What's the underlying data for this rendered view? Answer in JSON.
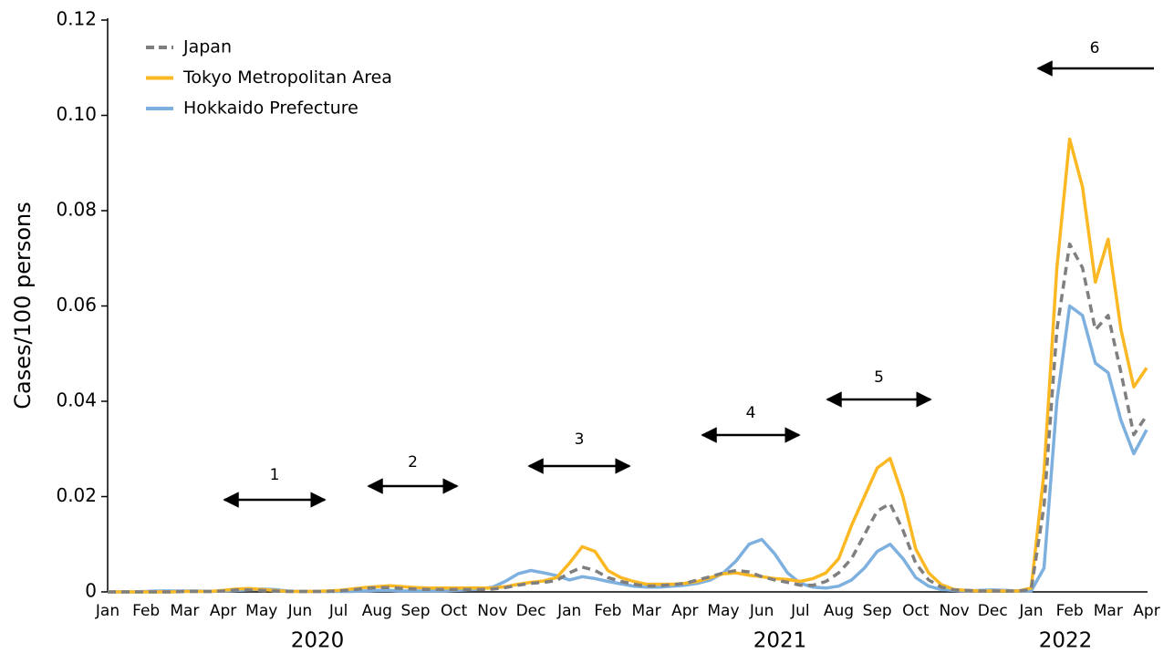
{
  "chart_data": {
    "type": "line",
    "y_label": "Cases/100 persons",
    "categories": [
      "Jan",
      null,
      null,
      "Feb",
      null,
      null,
      "Mar",
      null,
      null,
      "Apr",
      null,
      null,
      "May",
      null,
      null,
      "Jun",
      null,
      null,
      "Jul",
      null,
      null,
      "Aug",
      null,
      null,
      "Sep",
      null,
      null,
      "Oct",
      null,
      null,
      "Nov",
      null,
      null,
      "Dec",
      null,
      null,
      "Jan",
      null,
      null,
      "Feb",
      null,
      null,
      "Mar",
      null,
      null,
      "Apr",
      null,
      null,
      "May",
      null,
      null,
      "Jun",
      null,
      null,
      "Jul",
      null,
      null,
      "Aug",
      null,
      null,
      "Sep",
      null,
      null,
      "Oct",
      null,
      null,
      "Nov",
      null,
      null,
      "Dec",
      null,
      null,
      "Jan",
      null,
      null,
      "Feb",
      null,
      null,
      "Mar",
      null,
      null,
      "Apr"
    ],
    "year_labels": [
      "2020",
      "2021",
      "2022"
    ],
    "series": [
      {
        "name": "Japan",
        "color": "#7f7f7f",
        "style": "dashed",
        "values": [
          0,
          0,
          0,
          0,
          0,
          0,
          0.0001,
          0.0001,
          0.0001,
          0.0002,
          0.0004,
          0.0004,
          0.0003,
          0.0002,
          0.0001,
          0.0001,
          0.0001,
          0.0001,
          0.0002,
          0.0004,
          0.0007,
          0.0009,
          0.0009,
          0.0007,
          0.0006,
          0.0005,
          0.0005,
          0.0005,
          0.0005,
          0.0005,
          0.0006,
          0.0009,
          0.0014,
          0.0018,
          0.002,
          0.0024,
          0.004,
          0.0052,
          0.0045,
          0.003,
          0.0022,
          0.0016,
          0.0012,
          0.0013,
          0.0015,
          0.0018,
          0.0025,
          0.0032,
          0.004,
          0.0045,
          0.0042,
          0.0032,
          0.0025,
          0.002,
          0.0014,
          0.0014,
          0.0022,
          0.004,
          0.007,
          0.012,
          0.017,
          0.0185,
          0.013,
          0.006,
          0.0025,
          0.001,
          0.0004,
          0.0003,
          0.0002,
          0.0002,
          0.0002,
          0.0002,
          0.0005,
          0.018,
          0.055,
          0.073,
          0.068,
          0.055,
          0.058,
          0.046,
          0.033,
          0.037
        ]
      },
      {
        "name": "Tokyo Metropolitan Area",
        "color": "#fbb822",
        "style": "solid",
        "values": [
          0,
          0,
          0,
          0,
          0,
          0,
          0.0001,
          0.0001,
          0.0001,
          0.0003,
          0.0006,
          0.0007,
          0.0005,
          0.0003,
          0.0001,
          0.0001,
          0.0001,
          0.0002,
          0.0003,
          0.0006,
          0.0009,
          0.0011,
          0.0013,
          0.0011,
          0.0009,
          0.0008,
          0.0008,
          0.0008,
          0.0008,
          0.0008,
          0.0008,
          0.0011,
          0.0016,
          0.002,
          0.0023,
          0.003,
          0.006,
          0.0095,
          0.0085,
          0.0045,
          0.003,
          0.0022,
          0.0016,
          0.0016,
          0.0016,
          0.0018,
          0.0022,
          0.003,
          0.0038,
          0.004,
          0.0035,
          0.0032,
          0.0028,
          0.0026,
          0.0022,
          0.0028,
          0.004,
          0.007,
          0.014,
          0.02,
          0.026,
          0.028,
          0.02,
          0.009,
          0.004,
          0.0015,
          0.0005,
          0.0003,
          0.0002,
          0.0002,
          0.0002,
          0.0002,
          0.0008,
          0.025,
          0.068,
          0.095,
          0.085,
          0.065,
          0.074,
          0.055,
          0.043,
          0.047
        ]
      },
      {
        "name": "Hokkaido Prefecture",
        "color": "#7eb0df",
        "style": "solid",
        "values": [
          0,
          0,
          0,
          0.0001,
          0.0002,
          0.0002,
          0.0002,
          0.0002,
          0.0001,
          0.0002,
          0.0003,
          0.0004,
          0.0006,
          0.0005,
          0.0002,
          0.0001,
          0.0001,
          0.0001,
          0.0001,
          0.0001,
          0.0002,
          0.0003,
          0.0003,
          0.0002,
          0.0002,
          0.0002,
          0.0002,
          0.0003,
          0.0004,
          0.0006,
          0.001,
          0.0022,
          0.0038,
          0.0045,
          0.004,
          0.0034,
          0.0025,
          0.0032,
          0.0028,
          0.0022,
          0.0017,
          0.0012,
          0.001,
          0.001,
          0.0012,
          0.0014,
          0.0018,
          0.0025,
          0.004,
          0.0065,
          0.01,
          0.011,
          0.008,
          0.004,
          0.0018,
          0.001,
          0.0008,
          0.0012,
          0.0025,
          0.005,
          0.0085,
          0.01,
          0.007,
          0.003,
          0.0012,
          0.0005,
          0.0003,
          0.0002,
          0.0003,
          0.0004,
          0.0003,
          0.0002,
          0.0002,
          0.005,
          0.04,
          0.06,
          0.058,
          0.048,
          0.046,
          0.036,
          0.029,
          0.034
        ]
      }
    ],
    "ylim": [
      0,
      0.12
    ],
    "yticks": [
      0,
      0.02,
      0.04,
      0.06,
      0.08,
      {
        "value": 0.1,
        "label": "0.10"
      },
      0.12
    ],
    "legend": "top-left",
    "annotations": [
      "1",
      "2",
      "3",
      "4",
      "5",
      "6"
    ]
  }
}
